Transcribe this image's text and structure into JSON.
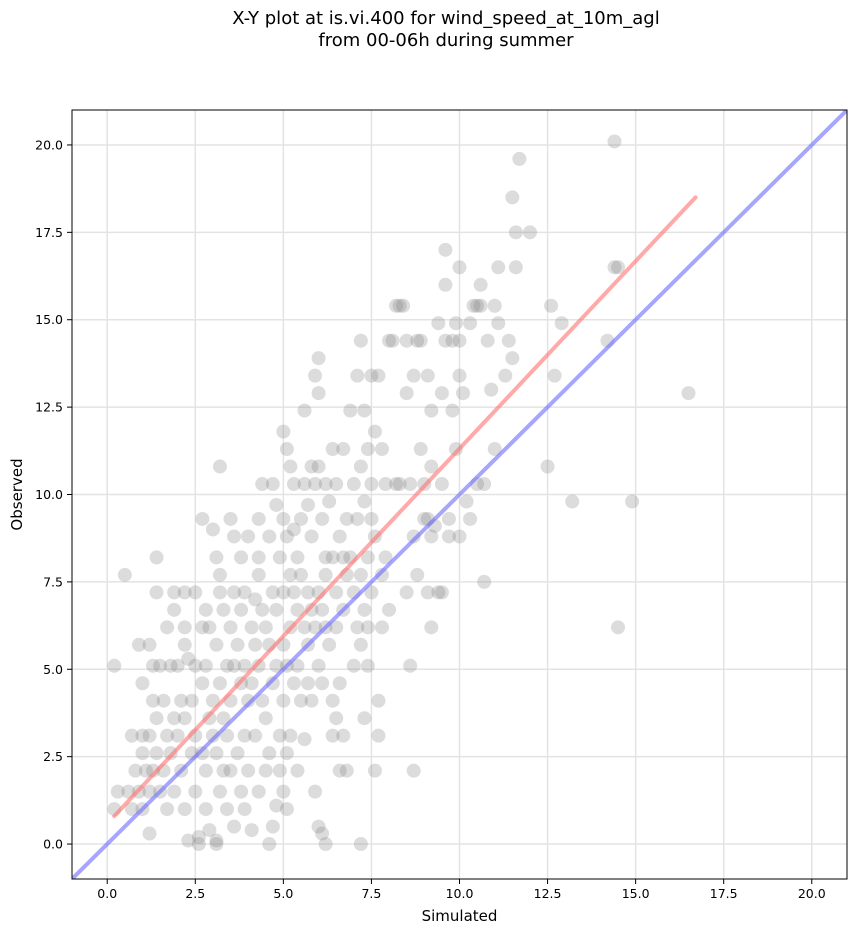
{
  "chart_data": {
    "type": "scatter",
    "title_line1": "X-Y plot at is.vi.400 for wind_speed_at_10m_agl",
    "title_line2": "from 00-06h during summer",
    "xlabel": "Simulated",
    "ylabel": "Observed",
    "xlim": [
      -1.0,
      21.0
    ],
    "ylim": [
      -1.0,
      21.0
    ],
    "xticks": [
      "0.0",
      "2.5",
      "5.0",
      "7.5",
      "10.0",
      "12.5",
      "15.0",
      "17.5",
      "20.0"
    ],
    "yticks": [
      "0.0",
      "2.5",
      "5.0",
      "7.5",
      "10.0",
      "12.5",
      "15.0",
      "17.5",
      "20.0"
    ],
    "grid": true,
    "colors": {
      "points": "#808080",
      "identity_line": "#6b6bff",
      "fit_line": "#ff7070"
    },
    "identity_line": {
      "x": [
        -1.0,
        21.0
      ],
      "y": [
        -1.0,
        21.0
      ]
    },
    "fit_line": {
      "x": [
        0.2,
        16.7
      ],
      "y": [
        0.8,
        18.5
      ]
    },
    "points": [
      [
        0.2,
        5.1
      ],
      [
        0.2,
        1.0
      ],
      [
        0.3,
        1.5
      ],
      [
        0.5,
        7.7
      ],
      [
        0.6,
        1.5
      ],
      [
        0.7,
        3.1
      ],
      [
        0.7,
        1.0
      ],
      [
        0.8,
        2.1
      ],
      [
        0.9,
        5.7
      ],
      [
        0.9,
        1.5
      ],
      [
        1.0,
        4.6
      ],
      [
        1.0,
        3.1
      ],
      [
        1.0,
        2.6
      ],
      [
        1.0,
        1.0
      ],
      [
        1.1,
        2.1
      ],
      [
        1.2,
        5.7
      ],
      [
        1.2,
        3.1
      ],
      [
        1.2,
        1.5
      ],
      [
        1.2,
        0.3
      ],
      [
        1.3,
        5.1
      ],
      [
        1.3,
        2.1
      ],
      [
        1.3,
        4.1
      ],
      [
        1.4,
        8.2
      ],
      [
        1.4,
        7.2
      ],
      [
        1.4,
        3.6
      ],
      [
        1.4,
        2.6
      ],
      [
        1.5,
        5.1
      ],
      [
        1.5,
        1.5
      ],
      [
        1.6,
        4.1
      ],
      [
        1.6,
        2.1
      ],
      [
        1.7,
        6.2
      ],
      [
        1.7,
        3.1
      ],
      [
        1.7,
        1.0
      ],
      [
        1.8,
        5.1
      ],
      [
        1.8,
        2.6
      ],
      [
        1.9,
        7.2
      ],
      [
        1.9,
        6.7
      ],
      [
        1.9,
        3.6
      ],
      [
        1.9,
        1.5
      ],
      [
        2.0,
        5.1
      ],
      [
        2.0,
        3.1
      ],
      [
        2.1,
        4.1
      ],
      [
        2.1,
        2.1
      ],
      [
        2.2,
        7.2
      ],
      [
        2.2,
        5.7
      ],
      [
        2.2,
        3.6
      ],
      [
        2.2,
        6.2
      ],
      [
        2.2,
        1.0
      ],
      [
        2.3,
        5.3
      ],
      [
        2.3,
        0.1
      ],
      [
        2.4,
        4.1
      ],
      [
        2.4,
        2.6
      ],
      [
        2.5,
        7.2
      ],
      [
        2.5,
        5.1
      ],
      [
        2.5,
        3.1
      ],
      [
        2.5,
        1.5
      ],
      [
        2.6,
        0.2
      ],
      [
        2.6,
        0.0
      ],
      [
        2.7,
        9.3
      ],
      [
        2.7,
        6.2
      ],
      [
        2.7,
        4.6
      ],
      [
        2.7,
        2.6
      ],
      [
        2.8,
        6.7
      ],
      [
        2.8,
        5.1
      ],
      [
        2.8,
        2.1
      ],
      [
        2.8,
        1.0
      ],
      [
        2.9,
        3.6
      ],
      [
        2.9,
        6.2
      ],
      [
        2.9,
        0.4
      ],
      [
        3.0,
        9.0
      ],
      [
        3.0,
        4.1
      ],
      [
        3.0,
        3.1
      ],
      [
        3.1,
        8.2
      ],
      [
        3.1,
        5.7
      ],
      [
        3.1,
        2.6
      ],
      [
        3.1,
        0.1
      ],
      [
        3.1,
        0.0
      ],
      [
        3.2,
        10.8
      ],
      [
        3.2,
        7.7
      ],
      [
        3.2,
        7.2
      ],
      [
        3.2,
        4.6
      ],
      [
        3.2,
        1.5
      ],
      [
        3.3,
        6.7
      ],
      [
        3.3,
        3.6
      ],
      [
        3.3,
        2.1
      ],
      [
        3.4,
        5.1
      ],
      [
        3.4,
        3.1
      ],
      [
        3.4,
        1.0
      ],
      [
        3.5,
        9.3
      ],
      [
        3.5,
        6.2
      ],
      [
        3.5,
        4.1
      ],
      [
        3.5,
        2.1
      ],
      [
        3.6,
        8.8
      ],
      [
        3.6,
        7.2
      ],
      [
        3.6,
        5.1
      ],
      [
        3.6,
        0.5
      ],
      [
        3.7,
        5.7
      ],
      [
        3.7,
        2.6
      ],
      [
        3.8,
        8.2
      ],
      [
        3.8,
        6.7
      ],
      [
        3.8,
        4.6
      ],
      [
        3.8,
        1.5
      ],
      [
        3.9,
        7.2
      ],
      [
        3.9,
        5.1
      ],
      [
        3.9,
        3.1
      ],
      [
        3.9,
        1.0
      ],
      [
        4.0,
        8.8
      ],
      [
        4.0,
        4.1
      ],
      [
        4.0,
        2.1
      ],
      [
        4.1,
        6.2
      ],
      [
        4.1,
        4.6
      ],
      [
        4.1,
        0.4
      ],
      [
        4.2,
        7.0
      ],
      [
        4.2,
        5.7
      ],
      [
        4.2,
        3.1
      ],
      [
        4.3,
        9.3
      ],
      [
        4.3,
        8.2
      ],
      [
        4.3,
        7.7
      ],
      [
        4.3,
        5.1
      ],
      [
        4.3,
        1.5
      ],
      [
        4.4,
        10.3
      ],
      [
        4.4,
        6.7
      ],
      [
        4.4,
        4.1
      ],
      [
        4.5,
        6.2
      ],
      [
        4.5,
        3.6
      ],
      [
        4.5,
        2.1
      ],
      [
        4.6,
        8.8
      ],
      [
        4.6,
        5.7
      ],
      [
        4.6,
        2.6
      ],
      [
        4.6,
        0.0
      ],
      [
        4.7,
        10.3
      ],
      [
        4.7,
        7.2
      ],
      [
        4.7,
        4.6
      ],
      [
        4.7,
        0.5
      ],
      [
        4.8,
        9.7
      ],
      [
        4.8,
        6.7
      ],
      [
        4.8,
        5.1
      ],
      [
        4.8,
        1.1
      ],
      [
        4.9,
        8.2
      ],
      [
        4.9,
        3.1
      ],
      [
        4.9,
        2.1
      ],
      [
        5.0,
        11.8
      ],
      [
        5.0,
        9.3
      ],
      [
        5.0,
        7.2
      ],
      [
        5.0,
        5.7
      ],
      [
        5.0,
        4.1
      ],
      [
        5.0,
        1.5
      ],
      [
        5.1,
        11.3
      ],
      [
        5.1,
        8.8
      ],
      [
        5.1,
        5.1
      ],
      [
        5.1,
        2.6
      ],
      [
        5.1,
        1.0
      ],
      [
        5.2,
        10.8
      ],
      [
        5.2,
        7.7
      ],
      [
        5.2,
        6.2
      ],
      [
        5.2,
        3.1
      ],
      [
        5.3,
        10.3
      ],
      [
        5.3,
        9.0
      ],
      [
        5.3,
        7.2
      ],
      [
        5.3,
        4.6
      ],
      [
        5.4,
        8.2
      ],
      [
        5.4,
        6.7
      ],
      [
        5.4,
        5.1
      ],
      [
        5.4,
        2.1
      ],
      [
        5.5,
        9.3
      ],
      [
        5.5,
        7.7
      ],
      [
        5.5,
        4.1
      ],
      [
        5.6,
        12.4
      ],
      [
        5.6,
        10.3
      ],
      [
        5.6,
        6.2
      ],
      [
        5.6,
        3.0
      ],
      [
        5.7,
        9.7
      ],
      [
        5.7,
        7.2
      ],
      [
        5.7,
        5.7
      ],
      [
        5.7,
        4.6
      ],
      [
        5.8,
        10.8
      ],
      [
        5.8,
        8.8
      ],
      [
        5.8,
        6.7
      ],
      [
        5.8,
        4.1
      ],
      [
        5.9,
        13.4
      ],
      [
        5.9,
        10.3
      ],
      [
        5.9,
        6.2
      ],
      [
        5.9,
        1.5
      ],
      [
        6.0,
        13.9
      ],
      [
        6.0,
        12.9
      ],
      [
        6.0,
        10.8
      ],
      [
        6.0,
        7.2
      ],
      [
        6.0,
        5.1
      ],
      [
        6.0,
        0.5
      ],
      [
        6.1,
        9.3
      ],
      [
        6.1,
        6.7
      ],
      [
        6.1,
        4.6
      ],
      [
        6.1,
        0.3
      ],
      [
        6.2,
        10.3
      ],
      [
        6.2,
        8.2
      ],
      [
        6.2,
        7.7
      ],
      [
        6.2,
        6.2
      ],
      [
        6.2,
        0.0
      ],
      [
        6.3,
        9.8
      ],
      [
        6.3,
        5.7
      ],
      [
        6.4,
        11.3
      ],
      [
        6.4,
        8.2
      ],
      [
        6.4,
        4.1
      ],
      [
        6.4,
        3.1
      ],
      [
        6.5,
        10.3
      ],
      [
        6.5,
        7.2
      ],
      [
        6.5,
        6.2
      ],
      [
        6.5,
        3.6
      ],
      [
        6.6,
        8.8
      ],
      [
        6.6,
        4.6
      ],
      [
        6.6,
        2.1
      ],
      [
        6.7,
        11.3
      ],
      [
        6.7,
        8.2
      ],
      [
        6.7,
        6.7
      ],
      [
        6.7,
        3.1
      ],
      [
        6.8,
        9.3
      ],
      [
        6.8,
        7.7
      ],
      [
        6.8,
        2.1
      ],
      [
        6.9,
        12.4
      ],
      [
        6.9,
        8.2
      ],
      [
        7.0,
        10.3
      ],
      [
        7.0,
        7.2
      ],
      [
        7.0,
        5.1
      ],
      [
        7.1,
        13.4
      ],
      [
        7.1,
        9.3
      ],
      [
        7.1,
        6.2
      ],
      [
        7.2,
        14.4
      ],
      [
        7.2,
        10.8
      ],
      [
        7.2,
        7.7
      ],
      [
        7.2,
        5.7
      ],
      [
        7.2,
        0.0
      ],
      [
        7.3,
        12.4
      ],
      [
        7.3,
        9.8
      ],
      [
        7.3,
        6.7
      ],
      [
        7.3,
        3.6
      ],
      [
        7.4,
        11.3
      ],
      [
        7.4,
        8.2
      ],
      [
        7.4,
        6.2
      ],
      [
        7.4,
        5.1
      ],
      [
        7.5,
        13.4
      ],
      [
        7.5,
        10.3
      ],
      [
        7.5,
        9.3
      ],
      [
        7.5,
        7.2
      ],
      [
        7.6,
        11.8
      ],
      [
        7.6,
        8.8
      ],
      [
        7.6,
        2.1
      ],
      [
        7.7,
        13.4
      ],
      [
        7.7,
        4.1
      ],
      [
        7.7,
        3.1
      ],
      [
        7.8,
        11.3
      ],
      [
        7.8,
        7.7
      ],
      [
        7.8,
        6.2
      ],
      [
        7.9,
        10.3
      ],
      [
        7.9,
        8.2
      ],
      [
        8.0,
        14.4
      ],
      [
        8.0,
        6.7
      ],
      [
        8.1,
        14.4
      ],
      [
        8.2,
        15.4
      ],
      [
        8.2,
        10.3
      ],
      [
        8.3,
        15.4
      ],
      [
        8.3,
        10.3
      ],
      [
        8.4,
        15.4
      ],
      [
        8.5,
        14.4
      ],
      [
        8.5,
        12.9
      ],
      [
        8.5,
        7.2
      ],
      [
        8.6,
        10.3
      ],
      [
        8.6,
        5.1
      ],
      [
        8.7,
        13.4
      ],
      [
        8.7,
        8.8
      ],
      [
        8.7,
        2.1
      ],
      [
        8.8,
        14.4
      ],
      [
        8.8,
        7.7
      ],
      [
        8.9,
        14.4
      ],
      [
        8.9,
        11.3
      ],
      [
        9.0,
        9.3
      ],
      [
        9.0,
        10.3
      ],
      [
        9.1,
        13.4
      ],
      [
        9.1,
        9.3
      ],
      [
        9.1,
        7.2
      ],
      [
        9.2,
        12.4
      ],
      [
        9.2,
        10.8
      ],
      [
        9.2,
        8.8
      ],
      [
        9.2,
        6.2
      ],
      [
        9.3,
        9.1
      ],
      [
        9.4,
        14.9
      ],
      [
        9.4,
        7.2
      ],
      [
        9.5,
        12.9
      ],
      [
        9.5,
        10.3
      ],
      [
        9.5,
        7.2
      ],
      [
        9.6,
        16.0
      ],
      [
        9.6,
        17.0
      ],
      [
        9.6,
        14.4
      ],
      [
        9.7,
        9.3
      ],
      [
        9.7,
        8.8
      ],
      [
        9.8,
        14.4
      ],
      [
        9.8,
        12.4
      ],
      [
        9.9,
        14.9
      ],
      [
        9.9,
        11.3
      ],
      [
        10.0,
        16.5
      ],
      [
        10.0,
        14.4
      ],
      [
        10.0,
        13.4
      ],
      [
        10.0,
        8.8
      ],
      [
        10.1,
        12.9
      ],
      [
        10.2,
        9.8
      ],
      [
        10.3,
        14.9
      ],
      [
        10.3,
        9.3
      ],
      [
        10.4,
        15.4
      ],
      [
        10.5,
        15.4
      ],
      [
        10.5,
        10.3
      ],
      [
        10.6,
        16.0
      ],
      [
        10.6,
        15.4
      ],
      [
        10.7,
        7.5
      ],
      [
        10.7,
        10.3
      ],
      [
        10.8,
        14.4
      ],
      [
        10.9,
        13.0
      ],
      [
        11.0,
        15.4
      ],
      [
        11.0,
        11.3
      ],
      [
        11.1,
        16.5
      ],
      [
        11.1,
        14.9
      ],
      [
        11.3,
        13.4
      ],
      [
        11.4,
        14.4
      ],
      [
        11.5,
        13.9
      ],
      [
        11.5,
        18.5
      ],
      [
        11.6,
        16.5
      ],
      [
        11.6,
        17.5
      ],
      [
        11.7,
        19.6
      ],
      [
        12.0,
        17.5
      ],
      [
        12.5,
        10.8
      ],
      [
        12.6,
        15.4
      ],
      [
        12.7,
        13.4
      ],
      [
        12.9,
        14.9
      ],
      [
        13.2,
        9.8
      ],
      [
        14.2,
        14.4
      ],
      [
        14.4,
        20.1
      ],
      [
        14.4,
        16.5
      ],
      [
        14.5,
        16.5
      ],
      [
        14.5,
        6.2
      ],
      [
        14.9,
        9.8
      ],
      [
        16.5,
        12.9
      ]
    ]
  }
}
